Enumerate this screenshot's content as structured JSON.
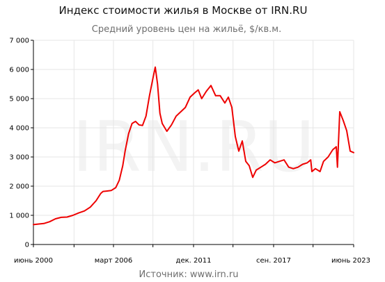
{
  "chart_data": {
    "type": "line",
    "title": "Индекс стоимости жилья в Москве от IRN.RU",
    "subtitle": "Средний уровень цен на жильё, $/кв.м.",
    "watermark": "IRN.RU",
    "source": "Источник: www.irn.ru",
    "ylim": [
      0,
      7000
    ],
    "yticks": [
      "0",
      "1 000",
      "2 000",
      "3 000",
      "4 000",
      "5 000",
      "6 000",
      "7 000"
    ],
    "xlim": [
      "2000-06",
      "2023-06"
    ],
    "xtick_labels": [
      {
        "date": "2000-06",
        "label": "июнь 2000"
      },
      {
        "date": "2006-03",
        "label": "март 2006"
      },
      {
        "date": "2011-12",
        "label": "дек. 2011"
      },
      {
        "date": "2017-09",
        "label": "сен. 2017"
      },
      {
        "date": "2023-06",
        "label": "июнь 2023"
      }
    ],
    "minor_tick_dates": [
      "2003-05",
      "2009-01",
      "2014-10",
      "2020-07"
    ],
    "grid": true,
    "line_color": "#ee0000",
    "series": [
      {
        "points": [
          [
            "2000-06",
            680
          ],
          [
            "2000-10",
            700
          ],
          [
            "2001-03",
            720
          ],
          [
            "2001-08",
            780
          ],
          [
            "2002-01",
            880
          ],
          [
            "2002-06",
            930
          ],
          [
            "2002-11",
            940
          ],
          [
            "2003-04",
            1000
          ],
          [
            "2003-09",
            1080
          ],
          [
            "2004-02",
            1150
          ],
          [
            "2004-07",
            1280
          ],
          [
            "2004-12",
            1500
          ],
          [
            "2005-04",
            1750
          ],
          [
            "2005-06",
            1820
          ],
          [
            "2005-09",
            1830
          ],
          [
            "2006-01",
            1850
          ],
          [
            "2006-05",
            1950
          ],
          [
            "2006-08",
            2200
          ],
          [
            "2006-11",
            2700
          ],
          [
            "2007-01",
            3200
          ],
          [
            "2007-04",
            3800
          ],
          [
            "2007-07",
            4150
          ],
          [
            "2007-10",
            4220
          ],
          [
            "2008-01",
            4100
          ],
          [
            "2008-04",
            4080
          ],
          [
            "2008-07",
            4400
          ],
          [
            "2008-10",
            5100
          ],
          [
            "2009-01",
            5700
          ],
          [
            "2009-03",
            6080
          ],
          [
            "2009-05",
            5500
          ],
          [
            "2009-07",
            4500
          ],
          [
            "2009-09",
            4150
          ],
          [
            "2010-01",
            3880
          ],
          [
            "2010-05",
            4100
          ],
          [
            "2010-09",
            4400
          ],
          [
            "2011-01",
            4550
          ],
          [
            "2011-05",
            4700
          ],
          [
            "2011-09",
            5050
          ],
          [
            "2012-01",
            5200
          ],
          [
            "2012-04",
            5300
          ],
          [
            "2012-07",
            5000
          ],
          [
            "2012-11",
            5250
          ],
          [
            "2013-03",
            5450
          ],
          [
            "2013-07",
            5100
          ],
          [
            "2013-11",
            5100
          ],
          [
            "2014-03",
            4850
          ],
          [
            "2014-06",
            5050
          ],
          [
            "2014-09",
            4700
          ],
          [
            "2014-12",
            3700
          ],
          [
            "2015-03",
            3200
          ],
          [
            "2015-06",
            3550
          ],
          [
            "2015-09",
            2850
          ],
          [
            "2015-12",
            2700
          ],
          [
            "2016-03",
            2300
          ],
          [
            "2016-06",
            2550
          ],
          [
            "2016-10",
            2650
          ],
          [
            "2017-02",
            2750
          ],
          [
            "2017-06",
            2900
          ],
          [
            "2017-10",
            2800
          ],
          [
            "2018-02",
            2850
          ],
          [
            "2018-06",
            2900
          ],
          [
            "2018-10",
            2650
          ],
          [
            "2019-02",
            2600
          ],
          [
            "2019-06",
            2650
          ],
          [
            "2019-10",
            2750
          ],
          [
            "2020-02",
            2800
          ],
          [
            "2020-05",
            2900
          ],
          [
            "2020-06",
            2500
          ],
          [
            "2020-09",
            2600
          ],
          [
            "2021-01",
            2500
          ],
          [
            "2021-04",
            2850
          ],
          [
            "2021-08",
            3000
          ],
          [
            "2021-12",
            3250
          ],
          [
            "2022-03",
            3350
          ],
          [
            "2022-04",
            2650
          ],
          [
            "2022-06",
            4550
          ],
          [
            "2022-09",
            4250
          ],
          [
            "2022-12",
            3900
          ],
          [
            "2023-03",
            3200
          ],
          [
            "2023-06",
            3150
          ]
        ]
      }
    ]
  }
}
